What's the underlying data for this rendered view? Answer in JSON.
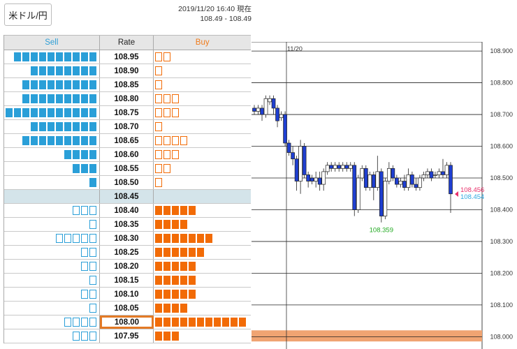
{
  "header": {
    "pair_label": "米ドル/円",
    "timestamp": "2019/11/20 16:40 現在",
    "quote_range": "108.49 - 108.49"
  },
  "book": {
    "headers": {
      "sell": "Sell",
      "rate": "Rate",
      "buy": "Buy"
    },
    "highlighted_rate": "108.00",
    "current_rate": "108.45",
    "rows": [
      {
        "rate": "108.95",
        "sell": 10,
        "sell_filled": true,
        "buy": 2,
        "buy_filled": false
      },
      {
        "rate": "108.90",
        "sell": 8,
        "sell_filled": true,
        "buy": 1,
        "buy_filled": false
      },
      {
        "rate": "108.85",
        "sell": 9,
        "sell_filled": true,
        "buy": 1,
        "buy_filled": false
      },
      {
        "rate": "108.80",
        "sell": 9,
        "sell_filled": true,
        "buy": 3,
        "buy_filled": false
      },
      {
        "rate": "108.75",
        "sell": 11,
        "sell_filled": true,
        "buy": 3,
        "buy_filled": false
      },
      {
        "rate": "108.70",
        "sell": 8,
        "sell_filled": true,
        "buy": 1,
        "buy_filled": false
      },
      {
        "rate": "108.65",
        "sell": 9,
        "sell_filled": true,
        "buy": 4,
        "buy_filled": false
      },
      {
        "rate": "108.60",
        "sell": 4,
        "sell_filled": true,
        "buy": 3,
        "buy_filled": false
      },
      {
        "rate": "108.55",
        "sell": 3,
        "sell_filled": true,
        "buy": 2,
        "buy_filled": false
      },
      {
        "rate": "108.50",
        "sell": 1,
        "sell_filled": true,
        "buy": 1,
        "buy_filled": false
      },
      {
        "rate": "108.45",
        "sell": 0,
        "sell_filled": true,
        "buy": 0,
        "buy_filled": false,
        "mid": true
      },
      {
        "rate": "108.40",
        "sell": 3,
        "sell_filled": false,
        "buy": 5,
        "buy_filled": true
      },
      {
        "rate": "108.35",
        "sell": 1,
        "sell_filled": false,
        "buy": 4,
        "buy_filled": true
      },
      {
        "rate": "108.30",
        "sell": 5,
        "sell_filled": false,
        "buy": 7,
        "buy_filled": true
      },
      {
        "rate": "108.25",
        "sell": 2,
        "sell_filled": false,
        "buy": 6,
        "buy_filled": true
      },
      {
        "rate": "108.20",
        "sell": 2,
        "sell_filled": false,
        "buy": 5,
        "buy_filled": true
      },
      {
        "rate": "108.15",
        "sell": 1,
        "sell_filled": false,
        "buy": 5,
        "buy_filled": true
      },
      {
        "rate": "108.10",
        "sell": 2,
        "sell_filled": false,
        "buy": 5,
        "buy_filled": true
      },
      {
        "rate": "108.05",
        "sell": 1,
        "sell_filled": false,
        "buy": 4,
        "buy_filled": true
      },
      {
        "rate": "108.00",
        "sell": 4,
        "sell_filled": false,
        "buy": 11,
        "buy_filled": true
      },
      {
        "rate": "107.95",
        "sell": 3,
        "sell_filled": false,
        "buy": 3,
        "buy_filled": true
      }
    ],
    "colors": {
      "sell": "#2a9fd8",
      "buy": "#f26b06",
      "highlight": "#e37a26",
      "mid_row": "#d4e4ea"
    }
  },
  "chart_data": {
    "type": "candlestick",
    "date_label": "11/20",
    "y_ticks": [
      "108.900",
      "108.800",
      "108.700",
      "108.600",
      "108.500",
      "108.400",
      "108.300",
      "108.200",
      "108.100",
      "108.000"
    ],
    "ylim": [
      107.97,
      108.92
    ],
    "low_label": "108.359",
    "bid_label": "108.456",
    "ask_label": "108.454",
    "highlight_band": [
      107.985,
      108.02
    ],
    "candles": [
      [
        108.72,
        108.71,
        108.73,
        108.7
      ],
      [
        108.71,
        108.72,
        108.73,
        108.7
      ],
      [
        108.72,
        108.7,
        108.73,
        108.68
      ],
      [
        108.7,
        108.75,
        108.76,
        108.69
      ],
      [
        108.74,
        108.75,
        108.76,
        108.73
      ],
      [
        108.75,
        108.72,
        108.76,
        108.7
      ],
      [
        108.72,
        108.68,
        108.73,
        108.66
      ],
      [
        108.69,
        108.7,
        108.71,
        108.68
      ],
      [
        108.7,
        108.61,
        108.71,
        108.6
      ],
      [
        108.61,
        108.58,
        108.62,
        108.57
      ],
      [
        108.58,
        108.56,
        108.6,
        108.54
      ],
      [
        108.56,
        108.49,
        108.57,
        108.46
      ],
      [
        108.49,
        108.6,
        108.62,
        108.45
      ],
      [
        108.6,
        108.51,
        108.61,
        108.5
      ],
      [
        108.51,
        108.49,
        108.52,
        108.47
      ],
      [
        108.5,
        108.49,
        108.51,
        108.48
      ],
      [
        108.49,
        108.5,
        108.52,
        108.47
      ],
      [
        108.5,
        108.48,
        108.52,
        108.46
      ],
      [
        108.48,
        108.52,
        108.53,
        108.46
      ],
      [
        108.52,
        108.54,
        108.55,
        108.51
      ],
      [
        108.54,
        108.53,
        108.55,
        108.52
      ],
      [
        108.53,
        108.54,
        108.55,
        108.52
      ],
      [
        108.54,
        108.53,
        108.55,
        108.52
      ],
      [
        108.53,
        108.54,
        108.55,
        108.52
      ],
      [
        108.54,
        108.53,
        108.55,
        108.52
      ],
      [
        108.53,
        108.54,
        108.55,
        108.52
      ],
      [
        108.54,
        108.4,
        108.55,
        108.38
      ],
      [
        108.4,
        108.5,
        108.51,
        108.39
      ],
      [
        108.5,
        108.53,
        108.54,
        108.49
      ],
      [
        108.53,
        108.47,
        108.54,
        108.46
      ],
      [
        108.47,
        108.51,
        108.52,
        108.46
      ],
      [
        108.51,
        108.47,
        108.52,
        108.43
      ],
      [
        108.47,
        108.52,
        108.57,
        108.46
      ],
      [
        108.52,
        108.38,
        108.53,
        108.36
      ],
      [
        108.38,
        108.49,
        108.5,
        108.37
      ],
      [
        108.49,
        108.53,
        108.55,
        108.48
      ],
      [
        108.53,
        108.5,
        108.54,
        108.49
      ],
      [
        108.5,
        108.48,
        108.51,
        108.47
      ],
      [
        108.48,
        108.49,
        108.5,
        108.47
      ],
      [
        108.49,
        108.47,
        108.51,
        108.46
      ],
      [
        108.47,
        108.51,
        108.53,
        108.46
      ],
      [
        108.51,
        108.48,
        108.52,
        108.47
      ],
      [
        108.48,
        108.47,
        108.5,
        108.46
      ],
      [
        108.47,
        108.5,
        108.51,
        108.46
      ],
      [
        108.5,
        108.51,
        108.52,
        108.49
      ],
      [
        108.51,
        108.52,
        108.53,
        108.5
      ],
      [
        108.52,
        108.5,
        108.53,
        108.49
      ],
      [
        108.51,
        108.51,
        108.52,
        108.5
      ],
      [
        108.51,
        108.52,
        108.53,
        108.5
      ],
      [
        108.52,
        108.51,
        108.56,
        108.5
      ],
      [
        108.51,
        108.54,
        108.55,
        108.5
      ],
      [
        108.54,
        108.45,
        108.55,
        108.39
      ]
    ],
    "colors": {
      "up": "#ffffff",
      "down": "#1f3fd1",
      "grid": "#222222",
      "band": "#f0a472",
      "low": "#22aa22",
      "bid": "#e8306a",
      "ask": "#2ea8e0"
    }
  }
}
